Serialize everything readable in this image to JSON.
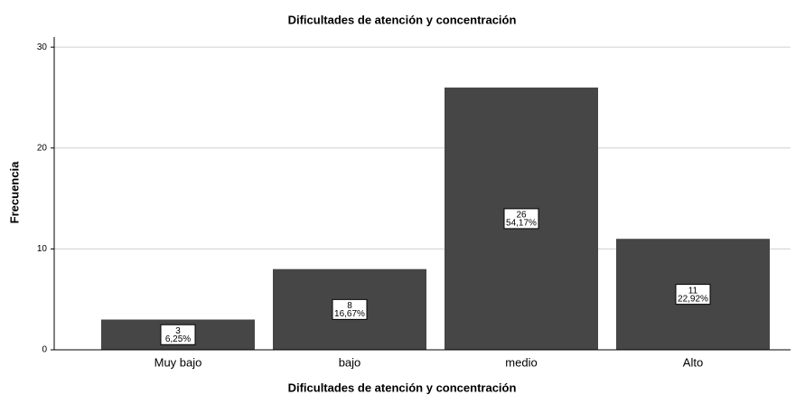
{
  "chart_data": {
    "type": "bar",
    "title": "Dificultades de atención y concentración",
    "x_label": "Dificultades de atención y concentración",
    "y_label": "Frecuencia",
    "categories": [
      "Muy bajo",
      "bajo",
      "medio",
      "Alto"
    ],
    "values": [
      3,
      8,
      26,
      11
    ],
    "percents": [
      6.25,
      16.67,
      54.17,
      22.92
    ],
    "percent_labels": [
      "6,25%",
      "16,67%",
      "54,17%",
      "22,92%"
    ],
    "color": "#464646",
    "ylim": [
      0,
      31
    ],
    "yticks": [
      0,
      10,
      20,
      30
    ],
    "grid": true
  }
}
